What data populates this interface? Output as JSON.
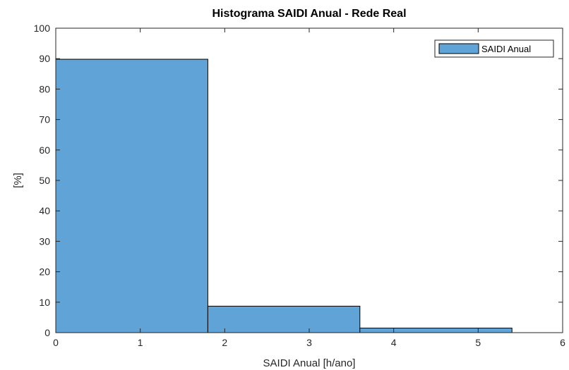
{
  "chart_data": {
    "type": "bar",
    "title": "Histograma SAIDI Anual - Rede Real",
    "xlabel": "SAIDI Anual [h/ano]",
    "ylabel": "[%]",
    "xlim": [
      0,
      6
    ],
    "ylim": [
      0,
      100
    ],
    "xticks": [
      0,
      1,
      2,
      3,
      4,
      5,
      6
    ],
    "yticks": [
      0,
      10,
      20,
      30,
      40,
      50,
      60,
      70,
      80,
      90,
      100
    ],
    "bin_edges": [
      0,
      1.8,
      3.6,
      5.4
    ],
    "series": [
      {
        "name": "SAIDI Anual",
        "values": [
          89.8,
          8.7,
          1.5
        ],
        "color": "#5fa3d7"
      }
    ],
    "legend_position": "top-right",
    "grid": false
  }
}
